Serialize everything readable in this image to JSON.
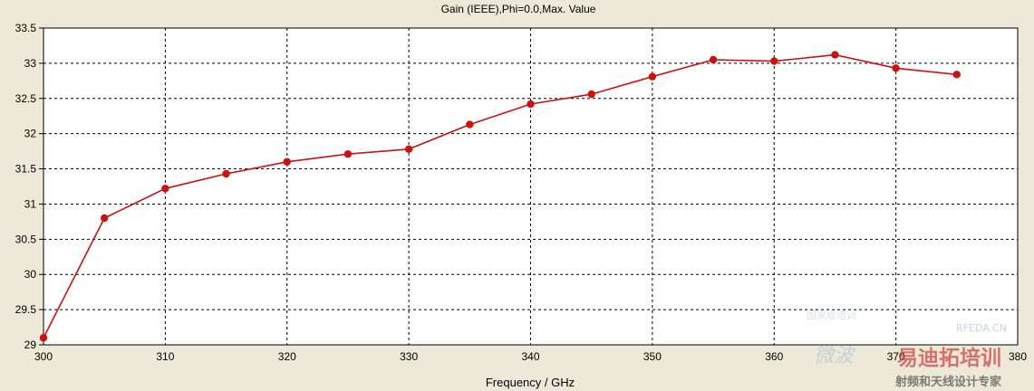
{
  "chart_data": {
    "type": "line",
    "title": "Gain (IEEE),Phi=0.0,Max. Value",
    "xlabel": "Frequency / GHz",
    "ylabel": "",
    "xlim": [
      300,
      380
    ],
    "ylim": [
      29,
      33.5
    ],
    "x_ticks": [
      "300",
      "310",
      "320",
      "330",
      "340",
      "350",
      "360",
      "370",
      "380"
    ],
    "y_ticks": [
      "29",
      "29.5",
      "30",
      "30.5",
      "31",
      "31.5",
      "32",
      "32.5",
      "33",
      "33.5"
    ],
    "grid": true,
    "legend": "none",
    "series": [
      {
        "color": "#cc1111",
        "x": [
          300,
          305,
          310,
          315,
          320,
          325,
          330,
          335,
          340,
          345,
          350,
          355,
          360,
          365,
          370,
          375
        ],
        "y": [
          29.1,
          30.8,
          31.22,
          31.43,
          31.6,
          31.71,
          31.78,
          32.13,
          32.42,
          32.56,
          32.81,
          33.05,
          33.03,
          33.12,
          32.93,
          32.84
        ]
      }
    ]
  },
  "watermark": {
    "site": "RFEDA.CN",
    "brand": "易迪拓培训",
    "tagline": "射频和天线设计专家",
    "faint": "微波",
    "top": "国家级培训"
  }
}
